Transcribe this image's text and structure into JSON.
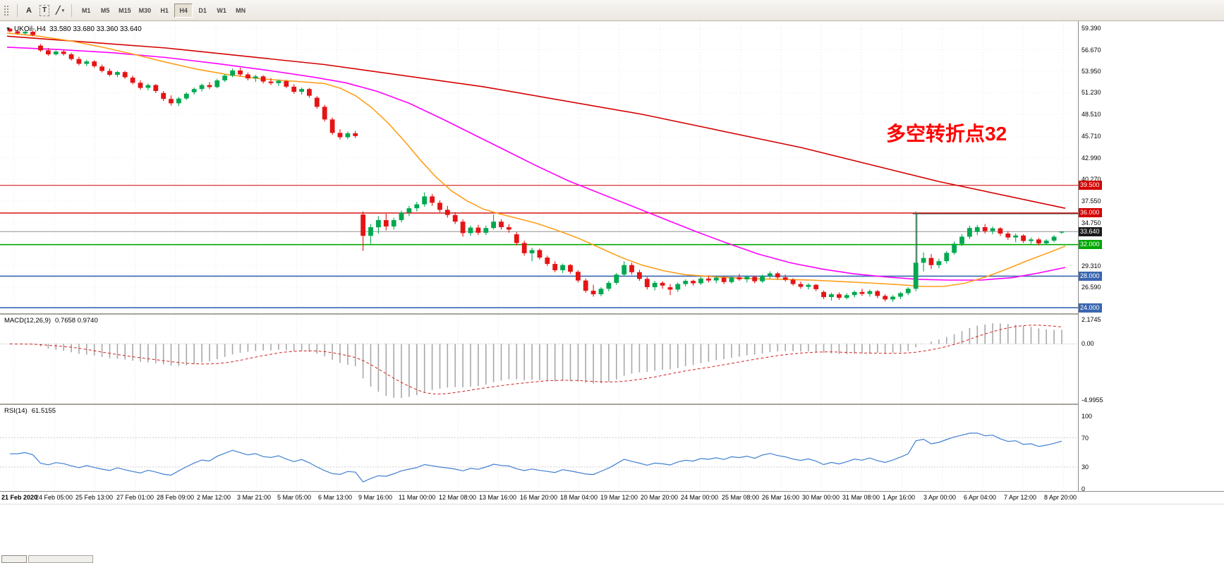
{
  "toolbar": {
    "cursor_label": "A",
    "text_label": "T",
    "shapes_glyph": "╱",
    "caret": "▾",
    "timeframes": [
      "M1",
      "M5",
      "M15",
      "M30",
      "H1",
      "H4",
      "D1",
      "W1",
      "MN"
    ],
    "active_timeframe": "H4"
  },
  "chart": {
    "title": "UKOil-,H4",
    "ohlc": "33.580 33.680 33.360 33.640",
    "annotation": "多空转折点32",
    "annotation_color": "#ff0000",
    "dropdown_icon": "▼"
  },
  "macd_panel": {
    "label": "MACD(12,26,9)",
    "values": "0.7658 0.9740"
  },
  "rsi_panel": {
    "label": "RSI(14)",
    "value": "61.5155"
  },
  "chart_data": {
    "type": "candlestick",
    "symbol": "UKOil-",
    "timeframe": "H4",
    "current_price": 33.64,
    "price_range": [
      23.3,
      60.3
    ],
    "up_color": "#00a84f",
    "down_color": "#e51414",
    "y_ticks": [
      59.39,
      56.67,
      53.95,
      51.23,
      48.51,
      45.71,
      42.99,
      40.27,
      37.55,
      34.75,
      29.31,
      26.59
    ],
    "y_tick_labels": [
      "59.390",
      "56.670",
      "53.950",
      "51.230",
      "48.510",
      "45.710",
      "42.990",
      "40.270",
      "37.550",
      "34.750",
      "29.310",
      "26.590"
    ],
    "levels": [
      {
        "label": "39.500",
        "price": 39.5,
        "color": "#d40000",
        "line_width": 1
      },
      {
        "label": "36.000",
        "price": 36.0,
        "color": "#d40000",
        "line_width": 1.4
      },
      {
        "label": "33.640",
        "price": 33.64,
        "color": "#1b1b1b",
        "line_color": "#909090",
        "line_width": 1
      },
      {
        "label": "32.000",
        "price": 32.0,
        "color": "#00a800",
        "line_width": 1.6
      },
      {
        "label": "28.000",
        "price": 28.0,
        "color": "#3a66b0",
        "line_width": 1.6
      },
      {
        "label": "24.000",
        "price": 24.0,
        "color": "#3a66b0",
        "line_width": 1.6
      }
    ],
    "trendline": {
      "color": "#d40000",
      "points_frac_price": [
        [
          0,
          58.4
        ],
        [
          0.15,
          56.9
        ],
        [
          0.3,
          54.8
        ],
        [
          0.45,
          52.0
        ],
        [
          0.6,
          48.5
        ],
        [
          0.75,
          44.3
        ],
        [
          0.88,
          40.0
        ],
        [
          1,
          36.6
        ]
      ]
    },
    "ma_fast": {
      "color": "#ff9f1a",
      "points_frac_price": [
        [
          0,
          58.8
        ],
        [
          0.03,
          58.4
        ],
        [
          0.06,
          57.8
        ],
        [
          0.09,
          57.0
        ],
        [
          0.12,
          56.1
        ],
        [
          0.15,
          55.1
        ],
        [
          0.18,
          54.2
        ],
        [
          0.21,
          53.5
        ],
        [
          0.24,
          53.0
        ],
        [
          0.27,
          52.7
        ],
        [
          0.3,
          52.4
        ],
        [
          0.315,
          51.8
        ],
        [
          0.33,
          50.8
        ],
        [
          0.345,
          49.3
        ],
        [
          0.36,
          47.4
        ],
        [
          0.375,
          45.2
        ],
        [
          0.39,
          42.8
        ],
        [
          0.405,
          40.6
        ],
        [
          0.42,
          38.8
        ],
        [
          0.435,
          37.5
        ],
        [
          0.45,
          36.5
        ],
        [
          0.465,
          35.9
        ],
        [
          0.48,
          35.4
        ],
        [
          0.5,
          34.7
        ],
        [
          0.52,
          33.8
        ],
        [
          0.54,
          32.8
        ],
        [
          0.56,
          31.6
        ],
        [
          0.58,
          30.4
        ],
        [
          0.6,
          29.4
        ],
        [
          0.62,
          28.7
        ],
        [
          0.64,
          28.2
        ],
        [
          0.67,
          27.9
        ],
        [
          0.7,
          27.7
        ],
        [
          0.73,
          27.6
        ],
        [
          0.76,
          27.5
        ],
        [
          0.79,
          27.3
        ],
        [
          0.82,
          27.1
        ],
        [
          0.845,
          26.9
        ],
        [
          0.865,
          26.7
        ],
        [
          0.885,
          26.7
        ],
        [
          0.905,
          27.1
        ],
        [
          0.925,
          27.9
        ],
        [
          0.945,
          28.9
        ],
        [
          0.965,
          30.0
        ],
        [
          0.985,
          31.0
        ],
        [
          1,
          31.8
        ]
      ]
    },
    "ma_slow": {
      "color": "#ff00ff",
      "points_frac_price": [
        [
          0,
          57.0
        ],
        [
          0.05,
          56.7
        ],
        [
          0.1,
          56.3
        ],
        [
          0.15,
          55.7
        ],
        [
          0.2,
          54.9
        ],
        [
          0.25,
          54.0
        ],
        [
          0.29,
          53.2
        ],
        [
          0.32,
          52.5
        ],
        [
          0.35,
          51.4
        ],
        [
          0.38,
          49.9
        ],
        [
          0.41,
          48.0
        ],
        [
          0.44,
          46.0
        ],
        [
          0.47,
          44.0
        ],
        [
          0.5,
          42.0
        ],
        [
          0.53,
          40.1
        ],
        [
          0.56,
          38.5
        ],
        [
          0.59,
          36.9
        ],
        [
          0.62,
          35.3
        ],
        [
          0.65,
          33.7
        ],
        [
          0.68,
          32.2
        ],
        [
          0.71,
          30.8
        ],
        [
          0.74,
          29.7
        ],
        [
          0.77,
          28.9
        ],
        [
          0.8,
          28.3
        ],
        [
          0.83,
          27.9
        ],
        [
          0.86,
          27.6
        ],
        [
          0.89,
          27.5
        ],
        [
          0.92,
          27.5
        ],
        [
          0.95,
          27.8
        ],
        [
          0.975,
          28.4
        ],
        [
          1,
          29.1
        ]
      ]
    },
    "spike_marker": {
      "candle_index": 118,
      "high": 35.9,
      "low": 27.2,
      "hline_price": 35.9,
      "color": "#3f3f3f"
    },
    "x_labels": [
      "21 Feb 2020",
      "24 Feb 05:00",
      "25 Feb 13:00",
      "27 Feb 01:00",
      "28 Feb 09:00",
      "2 Mar 12:00",
      "3 Mar 21:00",
      "5 Mar 05:00",
      "6 Mar 13:00",
      "9 Mar 16:00",
      "11 Mar 00:00",
      "12 Mar 08:00",
      "13 Mar 16:00",
      "16 Mar 20:00",
      "18 Mar 04:00",
      "19 Mar 12:00",
      "20 Mar 20:00",
      "24 Mar 00:00",
      "25 Mar 08:00",
      "26 Mar 16:00",
      "30 Mar 00:00",
      "31 Mar 08:00",
      "1 Apr 16:00",
      "3 Apr 00:00",
      "6 Apr 04:00",
      "7 Apr 12:00",
      "8 Apr 20:00"
    ],
    "candles": [
      [
        59.35,
        59.45,
        58.9,
        59.0
      ],
      [
        59.0,
        59.2,
        58.6,
        58.75
      ],
      [
        58.75,
        59.05,
        58.55,
        58.95
      ],
      [
        58.95,
        59.1,
        58.4,
        58.55
      ],
      [
        57.2,
        57.4,
        56.4,
        56.6
      ],
      [
        56.6,
        56.9,
        55.9,
        56.1
      ],
      [
        56.1,
        56.6,
        55.95,
        56.45
      ],
      [
        56.45,
        56.7,
        55.95,
        56.15
      ],
      [
        56.1,
        56.3,
        55.3,
        55.5
      ],
      [
        55.5,
        55.8,
        54.7,
        54.9
      ],
      [
        54.9,
        55.4,
        54.6,
        55.2
      ],
      [
        55.2,
        55.35,
        54.4,
        54.6
      ],
      [
        54.55,
        54.8,
        53.8,
        54.0
      ],
      [
        54.0,
        54.3,
        53.3,
        53.5
      ],
      [
        53.5,
        54.0,
        53.2,
        53.85
      ],
      [
        53.85,
        54.0,
        53.0,
        53.2
      ],
      [
        53.15,
        53.4,
        52.3,
        52.5
      ],
      [
        52.5,
        52.8,
        51.6,
        51.85
      ],
      [
        51.85,
        52.4,
        51.55,
        52.2
      ],
      [
        52.2,
        52.35,
        51.2,
        51.45
      ],
      [
        51.2,
        51.45,
        50.2,
        50.45
      ],
      [
        50.45,
        50.9,
        49.6,
        49.9
      ],
      [
        49.9,
        50.7,
        49.55,
        50.5
      ],
      [
        50.5,
        51.3,
        50.3,
        51.1
      ],
      [
        51.3,
        51.9,
        51.0,
        51.7
      ],
      [
        51.7,
        52.4,
        51.4,
        52.2
      ],
      [
        52.2,
        52.6,
        51.7,
        51.95
      ],
      [
        51.95,
        53.0,
        51.8,
        52.8
      ],
      [
        52.8,
        53.6,
        52.6,
        53.4
      ],
      [
        53.4,
        54.3,
        53.2,
        54.05
      ],
      [
        54.05,
        54.4,
        53.3,
        53.55
      ],
      [
        53.55,
        53.8,
        52.8,
        53.05
      ],
      [
        53.05,
        53.5,
        52.6,
        53.3
      ],
      [
        53.3,
        53.45,
        52.4,
        52.65
      ],
      [
        52.65,
        53.1,
        52.2,
        52.45
      ],
      [
        52.45,
        52.9,
        52.1,
        52.75
      ],
      [
        52.7,
        52.85,
        51.8,
        52.0
      ],
      [
        52.0,
        52.3,
        51.1,
        51.35
      ],
      [
        51.35,
        51.9,
        51.0,
        51.7
      ],
      [
        51.7,
        51.85,
        50.6,
        50.85
      ],
      [
        50.6,
        50.8,
        49.2,
        49.45
      ],
      [
        49.45,
        49.7,
        47.6,
        47.85
      ],
      [
        47.85,
        48.1,
        45.9,
        46.15
      ],
      [
        46.15,
        46.6,
        45.3,
        45.6
      ],
      [
        45.6,
        46.3,
        45.35,
        46.1
      ],
      [
        46.1,
        46.4,
        45.5,
        45.75
      ],
      [
        35.8,
        36.2,
        31.2,
        33.1
      ],
      [
        33.1,
        34.6,
        32.1,
        34.2
      ],
      [
        34.2,
        35.6,
        33.4,
        35.1
      ],
      [
        35.1,
        35.9,
        33.8,
        34.3
      ],
      [
        34.3,
        35.4,
        33.9,
        35.1
      ],
      [
        35.1,
        36.3,
        34.8,
        36.05
      ],
      [
        36.05,
        36.9,
        35.6,
        36.6
      ],
      [
        36.6,
        37.4,
        36.2,
        37.1
      ],
      [
        37.1,
        38.6,
        36.8,
        38.1
      ],
      [
        38.1,
        38.4,
        36.9,
        37.3
      ],
      [
        37.3,
        37.6,
        36.1,
        36.4
      ],
      [
        36.4,
        36.9,
        35.4,
        35.75
      ],
      [
        35.75,
        36.1,
        34.6,
        34.9
      ],
      [
        34.9,
        35.2,
        33.0,
        33.45
      ],
      [
        33.45,
        34.4,
        33.1,
        34.15
      ],
      [
        34.15,
        34.5,
        33.2,
        33.5
      ],
      [
        33.5,
        34.4,
        33.2,
        34.1
      ],
      [
        34.1,
        35.8,
        33.9,
        34.9
      ],
      [
        34.9,
        35.2,
        33.9,
        34.2
      ],
      [
        34.2,
        34.6,
        33.5,
        33.9
      ],
      [
        33.3,
        33.6,
        31.9,
        32.2
      ],
      [
        32.2,
        32.5,
        30.6,
        30.9
      ],
      [
        30.9,
        31.6,
        29.9,
        31.3
      ],
      [
        31.3,
        31.5,
        30.1,
        30.35
      ],
      [
        30.35,
        30.6,
        29.3,
        29.55
      ],
      [
        29.55,
        29.9,
        28.5,
        28.75
      ],
      [
        28.75,
        29.6,
        28.4,
        29.4
      ],
      [
        29.4,
        29.55,
        28.3,
        28.55
      ],
      [
        28.55,
        28.75,
        27.2,
        27.45
      ],
      [
        27.45,
        27.7,
        25.9,
        26.15
      ],
      [
        26.15,
        26.9,
        25.4,
        25.7
      ],
      [
        25.7,
        26.6,
        25.45,
        26.4
      ],
      [
        26.4,
        27.4,
        26.1,
        27.15
      ],
      [
        27.15,
        28.4,
        26.9,
        28.2
      ],
      [
        28.2,
        29.9,
        28.0,
        29.4
      ],
      [
        29.4,
        29.7,
        28.2,
        28.5
      ],
      [
        28.5,
        28.8,
        27.4,
        27.65
      ],
      [
        27.65,
        27.9,
        26.3,
        26.6
      ],
      [
        26.6,
        27.4,
        26.2,
        27.15
      ],
      [
        27.15,
        27.35,
        26.4,
        26.8
      ],
      [
        26.6,
        27.0,
        25.6,
        26.3
      ],
      [
        26.3,
        27.2,
        26.0,
        27.0
      ],
      [
        27.0,
        27.6,
        26.7,
        27.4
      ],
      [
        27.4,
        27.55,
        26.8,
        27.1
      ],
      [
        27.1,
        27.9,
        26.9,
        27.7
      ],
      [
        27.7,
        28.1,
        27.2,
        27.45
      ],
      [
        27.45,
        27.95,
        27.1,
        27.8
      ],
      [
        27.8,
        27.95,
        27.0,
        27.25
      ],
      [
        27.25,
        28.0,
        27.05,
        27.85
      ],
      [
        27.85,
        28.3,
        27.4,
        27.6
      ],
      [
        27.6,
        28.1,
        27.2,
        27.9
      ],
      [
        27.9,
        28.05,
        27.1,
        27.35
      ],
      [
        27.35,
        28.2,
        27.15,
        28.0
      ],
      [
        28.0,
        28.6,
        27.7,
        28.35
      ],
      [
        28.35,
        28.55,
        27.6,
        27.85
      ],
      [
        27.85,
        28.2,
        27.3,
        27.55
      ],
      [
        27.55,
        27.75,
        26.8,
        27.0
      ],
      [
        27.0,
        27.3,
        26.4,
        26.65
      ],
      [
        26.65,
        27.1,
        26.3,
        26.9
      ],
      [
        26.9,
        27.0,
        26.1,
        26.35
      ],
      [
        26.0,
        26.2,
        25.1,
        25.35
      ],
      [
        25.35,
        25.9,
        24.9,
        25.7
      ],
      [
        25.7,
        25.95,
        25.0,
        25.25
      ],
      [
        25.25,
        25.85,
        25.05,
        25.6
      ],
      [
        25.6,
        26.2,
        25.3,
        26.0
      ],
      [
        26.0,
        26.4,
        25.5,
        25.75
      ],
      [
        25.75,
        26.3,
        25.4,
        26.1
      ],
      [
        26.1,
        26.25,
        25.2,
        25.5
      ],
      [
        25.5,
        25.7,
        24.8,
        25.05
      ],
      [
        25.05,
        25.6,
        24.75,
        25.4
      ],
      [
        25.4,
        26.0,
        25.1,
        25.85
      ],
      [
        25.85,
        26.6,
        25.6,
        26.4
      ],
      [
        26.4,
        36.2,
        26.1,
        29.7
      ],
      [
        29.7,
        31.0,
        28.6,
        30.3
      ],
      [
        30.3,
        30.8,
        28.9,
        29.4
      ],
      [
        29.4,
        30.2,
        29.0,
        29.9
      ],
      [
        29.9,
        31.2,
        29.6,
        30.95
      ],
      [
        30.95,
        32.4,
        30.7,
        32.1
      ],
      [
        32.1,
        33.3,
        31.8,
        33.0
      ],
      [
        33.0,
        34.4,
        32.7,
        34.1
      ],
      [
        33.6,
        34.5,
        33.2,
        34.2
      ],
      [
        34.2,
        34.6,
        33.4,
        33.7
      ],
      [
        33.7,
        34.3,
        33.3,
        34.05
      ],
      [
        34.05,
        34.2,
        33.1,
        33.4
      ],
      [
        33.4,
        33.7,
        32.6,
        32.9
      ],
      [
        32.9,
        33.4,
        32.3,
        33.15
      ],
      [
        33.15,
        33.3,
        32.2,
        32.45
      ],
      [
        32.45,
        32.9,
        32.1,
        32.65
      ],
      [
        32.65,
        32.85,
        31.9,
        32.15
      ],
      [
        32.15,
        32.7,
        31.95,
        32.5
      ],
      [
        32.5,
        33.2,
        32.3,
        33.0
      ],
      [
        33.58,
        33.68,
        33.36,
        33.64
      ]
    ],
    "macd": {
      "params": [
        12,
        26,
        9
      ],
      "axis_labels": [
        "2.1745",
        "0.00",
        "-4.9955"
      ],
      "axis_values": [
        2.1745,
        0,
        -4.9955
      ],
      "range": [
        -5.3,
        2.6
      ],
      "histogram_color": "#a8a8a8",
      "signal_color": "#d42222"
    },
    "rsi": {
      "period": 14,
      "current": 61.5155,
      "axis_labels": [
        "100",
        "70",
        "30",
        "0"
      ],
      "axis_values": [
        100,
        70,
        30,
        0
      ],
      "levels": [
        70,
        30
      ],
      "range": [
        -3,
        115
      ],
      "line_color": "#3f7fd0"
    }
  }
}
